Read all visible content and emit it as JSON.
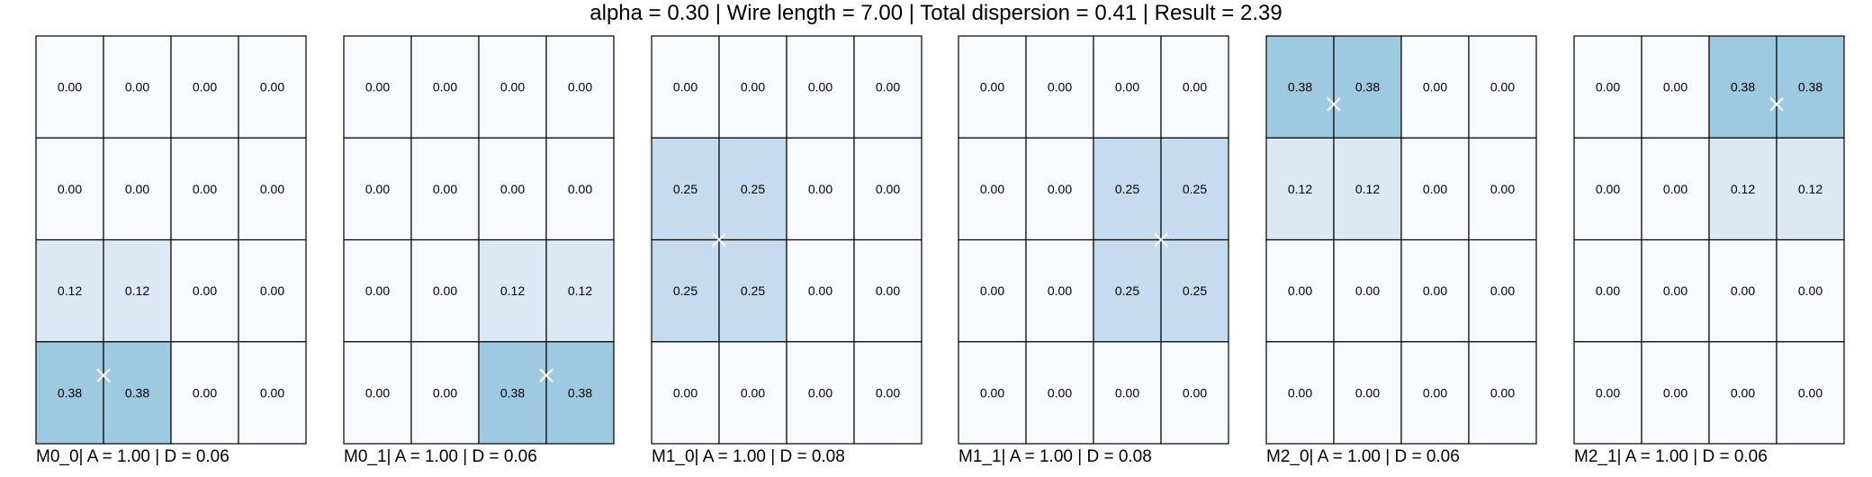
{
  "title": "alpha = 0.30 | Wire length = 7.00 | Total dispersion = 0.41 | Result = 2.39",
  "colors": {
    "0.00": "#f7fbff",
    "0.12": "#dce9f5",
    "0.25": "#c6dbef",
    "0.38": "#9ecae1",
    "grid_line": "#000000",
    "marker": "#ffffff"
  },
  "chart_data": [
    {
      "type": "heatmap",
      "caption": "M0_0| A = 1.00 | D = 0.06",
      "rows": 4,
      "cols": 4,
      "values": [
        [
          "0.00",
          "0.00",
          "0.00",
          "0.00"
        ],
        [
          "0.00",
          "0.00",
          "0.00",
          "0.00"
        ],
        [
          "0.12",
          "0.12",
          "0.00",
          "0.00"
        ],
        [
          "0.38",
          "0.38",
          "0.00",
          "0.00"
        ]
      ],
      "marker": {
        "col": 1.0,
        "row": 3.33
      }
    },
    {
      "type": "heatmap",
      "caption": "M0_1| A = 1.00 | D = 0.06",
      "rows": 4,
      "cols": 4,
      "values": [
        [
          "0.00",
          "0.00",
          "0.00",
          "0.00"
        ],
        [
          "0.00",
          "0.00",
          "0.00",
          "0.00"
        ],
        [
          "0.00",
          "0.00",
          "0.12",
          "0.12"
        ],
        [
          "0.00",
          "0.00",
          "0.38",
          "0.38"
        ]
      ],
      "marker": {
        "col": 3.0,
        "row": 3.33
      }
    },
    {
      "type": "heatmap",
      "caption": "M1_0| A = 1.00 | D = 0.08",
      "rows": 4,
      "cols": 4,
      "values": [
        [
          "0.00",
          "0.00",
          "0.00",
          "0.00"
        ],
        [
          "0.25",
          "0.25",
          "0.00",
          "0.00"
        ],
        [
          "0.25",
          "0.25",
          "0.00",
          "0.00"
        ],
        [
          "0.00",
          "0.00",
          "0.00",
          "0.00"
        ]
      ],
      "marker": {
        "col": 1.0,
        "row": 2.0
      }
    },
    {
      "type": "heatmap",
      "caption": "M1_1| A = 1.00 | D = 0.08",
      "rows": 4,
      "cols": 4,
      "values": [
        [
          "0.00",
          "0.00",
          "0.00",
          "0.00"
        ],
        [
          "0.00",
          "0.00",
          "0.25",
          "0.25"
        ],
        [
          "0.00",
          "0.00",
          "0.25",
          "0.25"
        ],
        [
          "0.00",
          "0.00",
          "0.00",
          "0.00"
        ]
      ],
      "marker": {
        "col": 3.0,
        "row": 2.0
      }
    },
    {
      "type": "heatmap",
      "caption": "M2_0| A = 1.00 | D = 0.06",
      "rows": 4,
      "cols": 4,
      "values": [
        [
          "0.38",
          "0.38",
          "0.00",
          "0.00"
        ],
        [
          "0.12",
          "0.12",
          "0.00",
          "0.00"
        ],
        [
          "0.00",
          "0.00",
          "0.00",
          "0.00"
        ],
        [
          "0.00",
          "0.00",
          "0.00",
          "0.00"
        ]
      ],
      "marker": {
        "col": 1.0,
        "row": 0.67
      }
    },
    {
      "type": "heatmap",
      "caption": "M2_1| A = 1.00 | D = 0.06",
      "rows": 4,
      "cols": 4,
      "values": [
        [
          "0.00",
          "0.00",
          "0.38",
          "0.38"
        ],
        [
          "0.00",
          "0.00",
          "0.12",
          "0.12"
        ],
        [
          "0.00",
          "0.00",
          "0.00",
          "0.00"
        ],
        [
          "0.00",
          "0.00",
          "0.00",
          "0.00"
        ]
      ],
      "marker": {
        "col": 3.0,
        "row": 0.67
      }
    }
  ]
}
